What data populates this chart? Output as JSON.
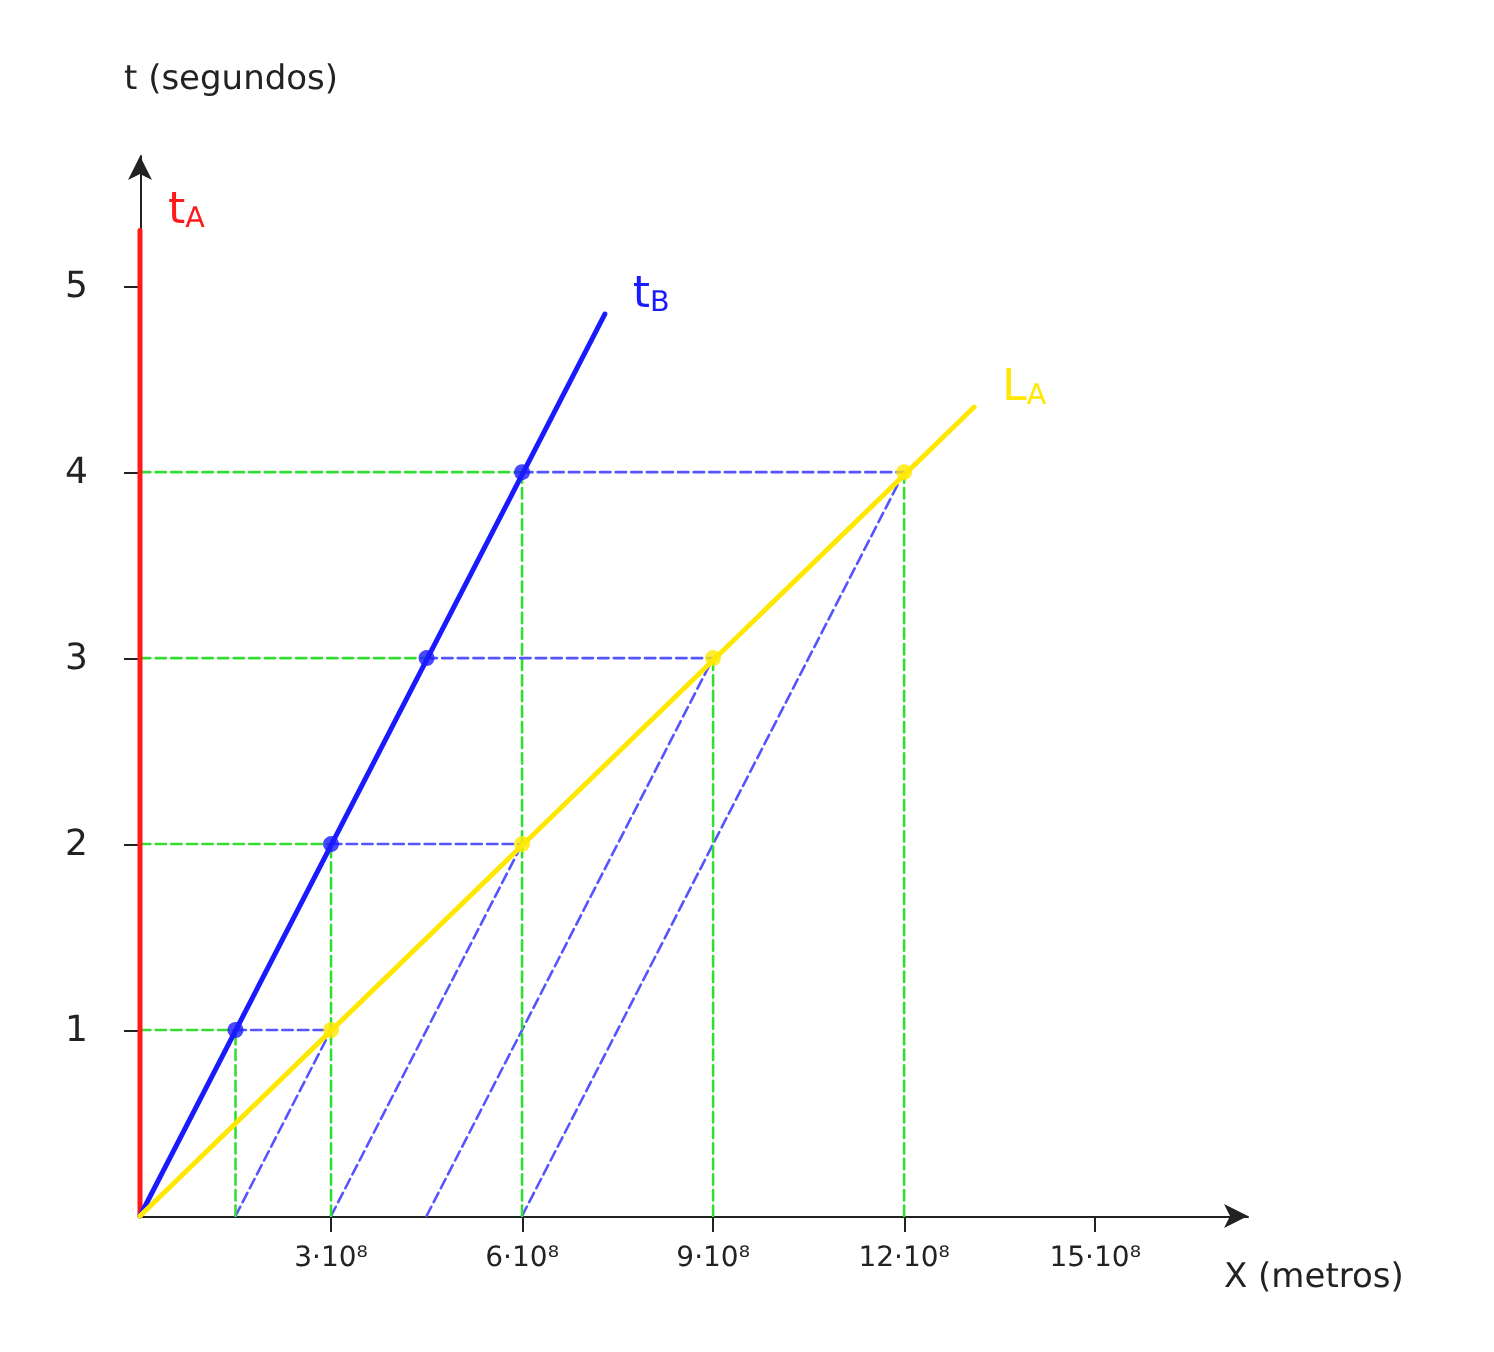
{
  "chart_data": {
    "type": "line",
    "xlabel": "X (metros)",
    "ylabel": "t (segundos)",
    "xlim": [
      0,
      1740000000
    ],
    "ylim": [
      0,
      5.7
    ],
    "xticks": [
      {
        "value": 300000000,
        "label": "3·10⁸"
      },
      {
        "value": 600000000,
        "label": "6·10⁸"
      },
      {
        "value": 900000000,
        "label": "9·10⁸"
      },
      {
        "value": 1200000000,
        "label": "12·10⁸"
      },
      {
        "value": 1500000000,
        "label": "15·10⁸"
      }
    ],
    "yticks": [
      1,
      2,
      3,
      4,
      5
    ],
    "grid": false,
    "legend": false,
    "series": [
      {
        "name": "t$_{A}$",
        "color": "#ff1a1a",
        "x": [
          0,
          0
        ],
        "values": [
          0,
          5.3
        ],
        "line_style": "solid",
        "marker": "none"
      },
      {
        "name": "t$_{B}$",
        "color": "#1a1aff",
        "x": [
          0,
          730000000
        ],
        "values": [
          0,
          4.85
        ],
        "line_style": "solid",
        "marker": "none"
      },
      {
        "name": "L$_{A}$",
        "color": "#ffe800",
        "x": [
          0,
          1310000000
        ],
        "values": [
          0,
          4.35
        ],
        "line_style": "solid",
        "marker": "none"
      },
      {
        "type": "line",
        "color": "#5555ff",
        "x": [
          150000000,
          300000000
        ],
        "values": [
          0,
          1
        ],
        "line_style": "dashed",
        "marker": "none"
      },
      {
        "type": "line",
        "color": "#5555ff",
        "x": [
          300000000,
          600000000
        ],
        "values": [
          0,
          2
        ],
        "line_style": "dashed",
        "marker": "none"
      },
      {
        "type": "line",
        "color": "#5555ff",
        "x": [
          450000000,
          900000000
        ],
        "values": [
          0,
          3
        ],
        "line_style": "dashed",
        "marker": "none"
      },
      {
        "type": "line",
        "color": "#5555ff",
        "x": [
          600000000,
          1200000000
        ],
        "values": [
          0,
          4
        ],
        "line_style": "dashed",
        "marker": "none"
      },
      {
        "type": "line",
        "color": "#33dd33",
        "x": [
          0,
          150000000
        ],
        "values": [
          1,
          1
        ],
        "line_style": "dashed",
        "marker": "none"
      },
      {
        "type": "line",
        "color": "#33dd33",
        "x": [
          0,
          300000000
        ],
        "values": [
          2,
          2
        ],
        "line_style": "dashed",
        "marker": "none"
      },
      {
        "type": "line",
        "color": "#33dd33",
        "x": [
          0,
          450000000
        ],
        "values": [
          3,
          3
        ],
        "line_style": "dashed",
        "marker": "none"
      },
      {
        "type": "line",
        "color": "#33dd33",
        "x": [
          0,
          600000000
        ],
        "values": [
          4,
          4
        ],
        "line_style": "dashed",
        "marker": "none"
      },
      {
        "type": "line",
        "color": "#33dd33",
        "x": [
          150000000,
          150000000
        ],
        "values": [
          0,
          1
        ],
        "line_style": "dashed",
        "marker": "none"
      },
      {
        "type": "line",
        "color": "#33dd33",
        "x": [
          300000000,
          300000000
        ],
        "values": [
          0,
          2
        ],
        "line_style": "dashed",
        "marker": "none"
      },
      {
        "type": "line",
        "color": "#33dd33",
        "x": [
          600000000,
          600000000
        ],
        "values": [
          0,
          4
        ],
        "line_style": "dashed",
        "marker": "none"
      },
      {
        "type": "line",
        "color": "#33dd33",
        "x": [
          900000000,
          900000000
        ],
        "values": [
          0,
          3
        ],
        "line_style": "dashed",
        "marker": "none"
      },
      {
        "type": "line",
        "color": "#33dd33",
        "x": [
          1200000000,
          1200000000
        ],
        "values": [
          0,
          4
        ],
        "line_style": "dashed",
        "marker": "none"
      },
      {
        "type": "line",
        "color": "#5555ff",
        "x": [
          150000000,
          300000000
        ],
        "values": [
          1,
          1
        ],
        "line_style": "dashed",
        "marker": "none"
      },
      {
        "type": "line",
        "color": "#5555ff",
        "x": [
          300000000,
          600000000
        ],
        "values": [
          2,
          2
        ],
        "line_style": "dashed",
        "marker": "none"
      },
      {
        "type": "line",
        "color": "#5555ff",
        "x": [
          450000000,
          900000000
        ],
        "values": [
          3,
          3
        ],
        "line_style": "dashed",
        "marker": "none"
      },
      {
        "type": "line",
        "color": "#5555ff",
        "x": [
          600000000,
          1200000000
        ],
        "values": [
          4,
          4
        ],
        "line_style": "dashed",
        "marker": "none"
      },
      {
        "type": "scatter",
        "color": "#1a1aff",
        "x": [
          150000000,
          300000000,
          450000000,
          600000000
        ],
        "values": [
          1,
          2,
          3,
          4
        ],
        "marker": "circle"
      },
      {
        "type": "scatter",
        "color": "#ffe800",
        "x": [
          300000000,
          600000000,
          900000000,
          1200000000
        ],
        "values": [
          1,
          2,
          3,
          4
        ],
        "marker": "circle"
      }
    ]
  }
}
